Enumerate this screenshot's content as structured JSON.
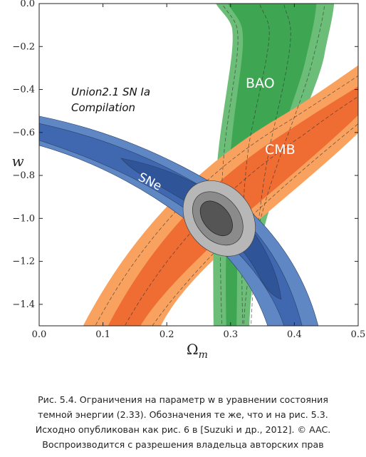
{
  "chart_data": {
    "type": "contour",
    "xlabel_main": "Ω",
    "xlabel_sub": "m",
    "ylabel": "w",
    "xlim": [
      0.0,
      0.5
    ],
    "ylim": [
      -1.5,
      0.0
    ],
    "xticks": [
      "0.0",
      "0.1",
      "0.2",
      "0.3",
      "0.4",
      "0.5"
    ],
    "yticks": [
      "0.0",
      "−0.2",
      "−0.4",
      "−0.6",
      "−0.8",
      "−1.0",
      "−1.2",
      "−1.4"
    ],
    "xtick_values": [
      0.0,
      0.1,
      0.2,
      0.3,
      0.4,
      0.5
    ],
    "ytick_values": [
      0.0,
      -0.2,
      -0.4,
      -0.6,
      -0.8,
      -1.0,
      -1.2,
      -1.4
    ],
    "annotations": {
      "compilation_line1": "Union2.1 SN Ia",
      "compilation_line2": "Compilation",
      "bao": "BAO",
      "cmb": "CMB",
      "sne": "SNe"
    },
    "colors": {
      "bao_outer": "#6cbd78",
      "bao_inner": "#3ea652",
      "cmb_outer": "#f9a25f",
      "cmb_inner": "#ef6d33",
      "sne_outer": "#5f87c4",
      "sne_mid": "#4068b0",
      "sne_inner": "#2f5498",
      "combined_outer": "#b7b7b7",
      "combined_mid": "#8b8b8b",
      "combined_inner": "#555555"
    },
    "regions": {
      "bao_center": [
        [
          0.305,
          -1.5
        ],
        [
          0.305,
          -1.0
        ],
        [
          0.32,
          -0.5
        ],
        [
          0.355,
          0.0
        ]
      ],
      "cmb_center": [
        [
          0.13,
          -1.5
        ],
        [
          0.23,
          -1.0
        ],
        [
          0.35,
          -0.6
        ],
        [
          0.5,
          -0.38
        ]
      ],
      "sne_center": [
        [
          0.0,
          -0.55
        ],
        [
          0.2,
          -0.76
        ],
        [
          0.3,
          -1.0
        ],
        [
          0.42,
          -1.4
        ]
      ],
      "combined_center": [
        0.28,
        -1.0
      ]
    }
  },
  "caption": {
    "lines": [
      "Рис. 5.4. Ограничения на параметр w в уравнении состояния",
      "темной энергии (2.33). Обозначения те же, что и на рис. 5.3.",
      "Исходно опубликован как рис. 6 в [Suzuki и др., 2012]. © AAC.",
      "Воспроизводится с разрешения владельца авторских прав"
    ]
  }
}
